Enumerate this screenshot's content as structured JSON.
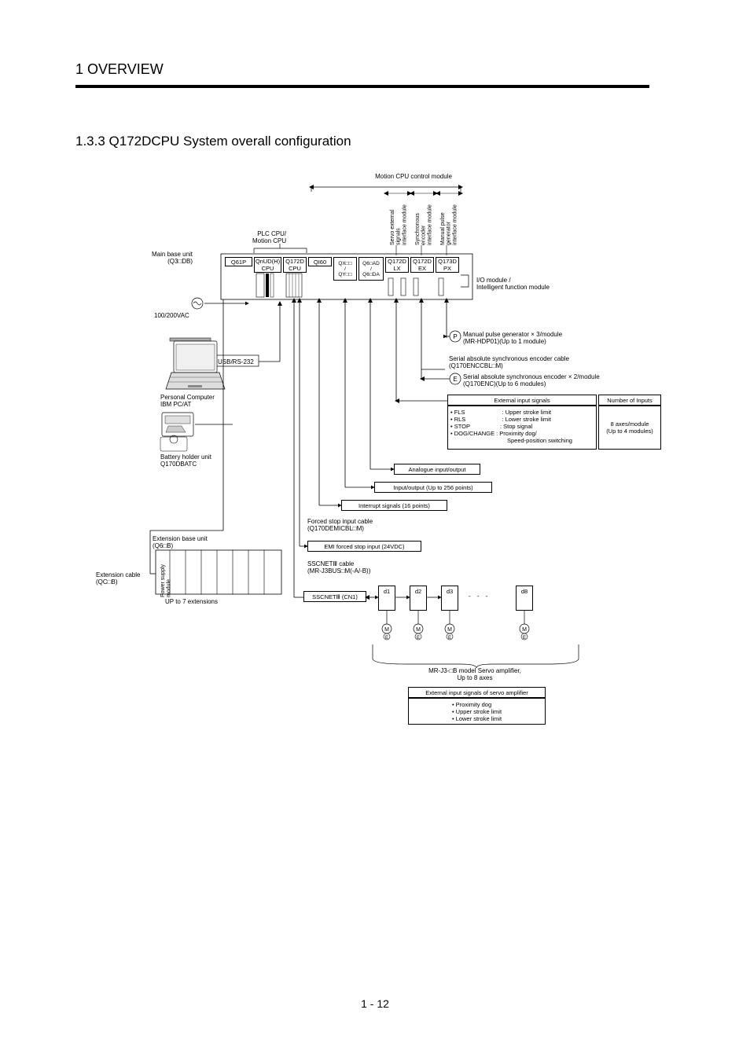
{
  "chapter": "1  OVERVIEW",
  "section": "1.3.3 Q172DCPU System overall configuration",
  "page_number": "1 - 12",
  "colors": {
    "text": "#000000",
    "bg": "#ffffff",
    "line": "#000000"
  },
  "brace_top": "Motion CPU control module",
  "vert_labels": {
    "servo": "Servo external\nsignals\ninterface module",
    "sync": "Synchronous\nencoder\ninterface module",
    "manual": "Manual pulse\ngenerator\ninterface module"
  },
  "plc_cpu_motion": "PLC CPU/\nMotion CPU",
  "main_base": "Main base unit\n(Q3□DB)",
  "modules": {
    "q61p": "Q61P",
    "qnudh": "QnUD(H)\nCPU",
    "q172d": "Q172D\nCPU",
    "qi60": "QI60",
    "qx": "QX□□\n/\nQY□□",
    "q6ad": "Q6□AD\n/\nQ6□DA",
    "q172dlx": "Q172D\nLX",
    "q172dex": "Q172D\nEX",
    "q173dpx": "Q173D\nPX"
  },
  "io_module": "I/O module /\nIntelligent function module",
  "ac_label": "100/200VAC",
  "usb": "USB/RS-232",
  "pc": "Personal Computer\nIBM PC/AT",
  "battery": "Battery holder unit\nQ170DBATC",
  "ext_base": "Extension base unit\n(Q6□B)",
  "ext_cable": "Extension cable\n(QC□B)",
  "ps_module": "Power supply\nmodule",
  "up_to_7": "UP to 7 extensions",
  "manual_pulse": "Manual pulse generator × 3/module\n(MR-HDP01)(Up to 1 module)",
  "serial_enc_cable": "Serial absolute synchronous encoder cable\n(Q170ENCCBL□M)",
  "serial_enc": "Serial absolute synchronous encoder × 2/module\n(Q170ENC)(Up to 6 modules)",
  "ext_input_hdr": "External input signals",
  "num_inputs_hdr": "Number of Inputs",
  "signals": {
    "fls": "FLS",
    "fls_desc": ": Upper stroke limit",
    "rls": "RLS",
    "rls_desc": ": Lower stroke limit",
    "stop": "STOP",
    "stop_desc": ": Stop signal",
    "dog": "DOG/CHANGE",
    "dog_desc": ": Proximity dog/",
    "dog_desc2": "  Speed-position switching"
  },
  "num_inputs_body": "8 axes/module\n(Up to 4 modules)",
  "analogue": "Analogue input/output",
  "io_256": "Input/output (Up to 256 points)",
  "interrupt": "Interrupt signals (16 points)",
  "forced_stop_cable": "Forced stop input cable\n(Q170DEMICBL□M)",
  "emi": "EMI forced stop input (24VDC)",
  "sscnet_cable": "SSCNETⅢ cable\n(MR-J3BUS□M(-A/-B))",
  "sscnet_cn1": "SSCNETⅢ (CN1)",
  "drives": {
    "d1": "d1",
    "d2": "d2",
    "d3": "d3",
    "d8": "d8"
  },
  "mr_j3": "MR-J3-□B model Servo amplifier,\nUp to 8 axes",
  "ext_servo_hdr": "External input signals of servo amplifier",
  "ext_servo_items": "• Proximity dog\n• Upper stroke limit\n• Lower stroke limit",
  "p_label": "P",
  "e_label": "E",
  "m_label": "M",
  "me_e": "E"
}
